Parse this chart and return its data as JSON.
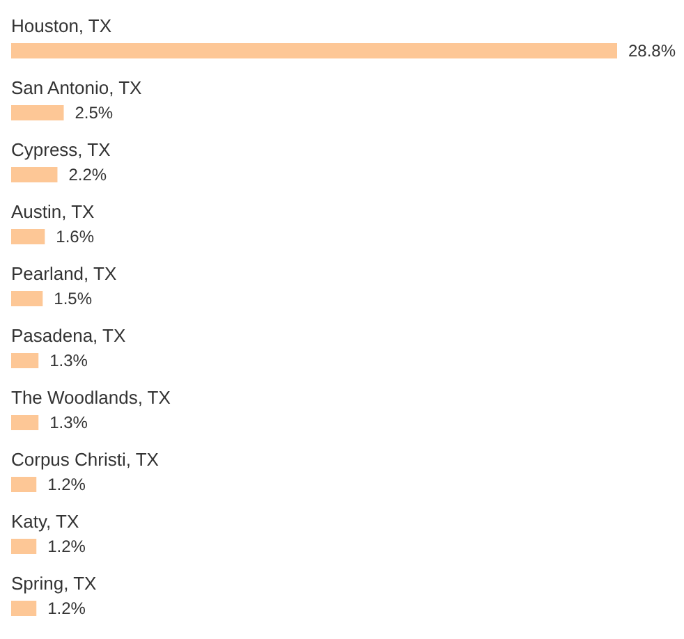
{
  "chart_data": {
    "type": "bar",
    "orientation": "horizontal",
    "categories": [
      "Houston, TX",
      "San Antonio, TX",
      "Cypress, TX",
      "Austin, TX",
      "Pearland, TX",
      "Pasadena, TX",
      "The Woodlands, TX",
      "Corpus Christi, TX",
      "Katy, TX",
      "Spring, TX"
    ],
    "values": [
      28.8,
      2.5,
      2.2,
      1.6,
      1.5,
      1.3,
      1.3,
      1.2,
      1.2,
      1.2
    ],
    "value_labels": [
      "28.8%",
      "2.5%",
      "2.2%",
      "1.6%",
      "1.5%",
      "1.3%",
      "1.3%",
      "1.2%",
      "1.2%",
      "1.2%"
    ],
    "color": "#fdc796"
  }
}
